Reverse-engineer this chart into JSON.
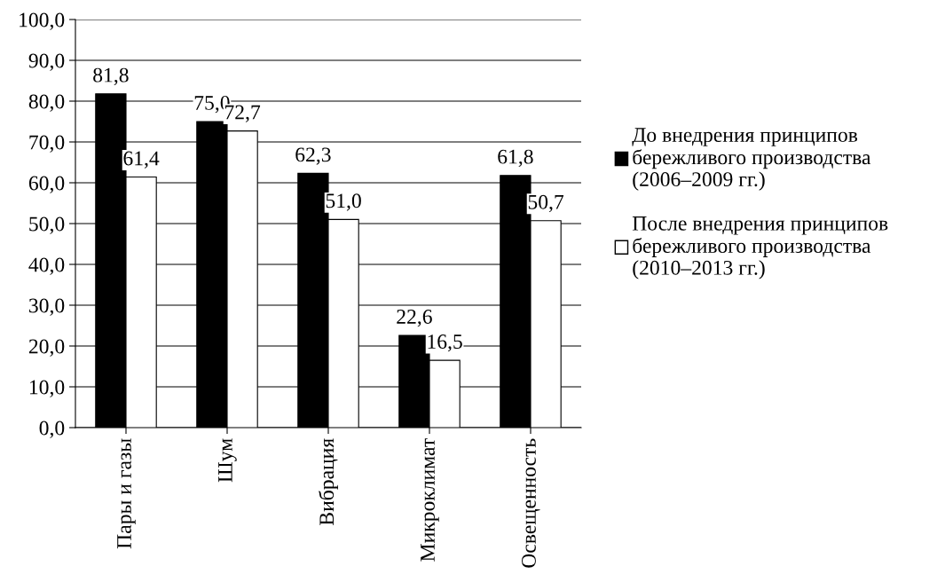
{
  "chart_data": {
    "type": "bar",
    "categories": [
      "Пары и газы",
      "Шум",
      "Вибрация",
      "Микроклимат",
      "Освещенность"
    ],
    "series": [
      {
        "name": "До внедрения принципов\nбережливого производства\n(2006–2009 гг.)",
        "color": "#000000",
        "values": [
          81.8,
          75.0,
          62.3,
          22.6,
          61.8
        ],
        "value_labels": [
          "81,8",
          "75,0",
          "62,3",
          "22,6",
          "61,8"
        ]
      },
      {
        "name": "После внедрения принципов\nбережливого производства\n(2010–2013 гг.)",
        "color": "#ffffff",
        "values": [
          61.4,
          72.7,
          51.0,
          16.5,
          50.7
        ],
        "value_labels": [
          "61,4",
          "72,7",
          "51,0",
          "16,5",
          "50,7"
        ]
      }
    ],
    "ylim": [
      0,
      100
    ],
    "yticks": [
      {
        "value": 0,
        "label": "0,0"
      },
      {
        "value": 10,
        "label": "10,0"
      },
      {
        "value": 20,
        "label": "20,0"
      },
      {
        "value": 30,
        "label": "30,0"
      },
      {
        "value": 40,
        "label": "40,0"
      },
      {
        "value": 50,
        "label": "50,0"
      },
      {
        "value": 60,
        "label": "60,0"
      },
      {
        "value": 70,
        "label": "70,0"
      },
      {
        "value": 80,
        "label": "80,0"
      },
      {
        "value": 90,
        "label": "90,0"
      },
      {
        "value": 100,
        "label": "100,0"
      }
    ],
    "grid": "y",
    "legend": "right"
  }
}
